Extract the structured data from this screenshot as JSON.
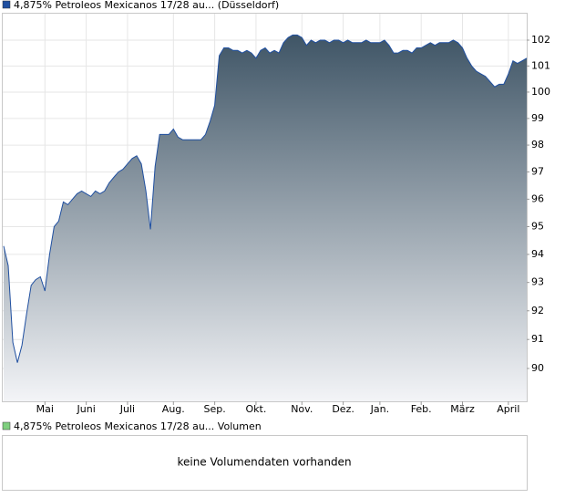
{
  "chart_data": {
    "type": "area_line",
    "legend_position": "top-left",
    "log_scale": true,
    "grid": true,
    "area_gradient": [
      "#3f5566",
      "#f3f4f7"
    ],
    "categories": [
      null,
      null,
      null,
      null,
      null,
      null,
      null,
      null,
      null,
      "Mai",
      null,
      null,
      null,
      null,
      null,
      null,
      null,
      null,
      "Juni",
      null,
      null,
      null,
      null,
      null,
      null,
      null,
      null,
      "Juli",
      null,
      null,
      null,
      null,
      null,
      null,
      null,
      null,
      null,
      "Aug.",
      null,
      null,
      null,
      null,
      null,
      null,
      null,
      null,
      "Sep.",
      null,
      null,
      null,
      null,
      null,
      null,
      null,
      null,
      "Okt.",
      null,
      null,
      null,
      null,
      null,
      null,
      null,
      null,
      null,
      "Nov.",
      null,
      null,
      null,
      null,
      null,
      null,
      null,
      null,
      "Dez.",
      null,
      null,
      null,
      null,
      null,
      null,
      null,
      "Jan.",
      null,
      null,
      null,
      null,
      null,
      null,
      null,
      null,
      "Feb.",
      null,
      null,
      null,
      null,
      null,
      null,
      null,
      null,
      "März",
      null,
      null,
      null,
      null,
      null,
      null,
      null,
      null,
      null,
      "April",
      null,
      null,
      null,
      null
    ],
    "series": [
      {
        "name": "4,875% Petroleos Mexicanos 17/28 au... (Düsseldorf)",
        "color": "#1f4fa0",
        "values": [
          94.3,
          93.6,
          90.9,
          90.2,
          90.8,
          91.9,
          92.9,
          93.1,
          93.2,
          92.7,
          94.0,
          95.0,
          95.2,
          95.9,
          95.8,
          96.0,
          96.2,
          96.3,
          96.2,
          96.1,
          96.3,
          96.2,
          96.3,
          96.6,
          96.8,
          97.0,
          97.1,
          97.3,
          97.5,
          97.6,
          97.3,
          96.3,
          94.9,
          97.2,
          98.4,
          98.4,
          98.4,
          98.6,
          98.3,
          98.2,
          98.2,
          98.2,
          98.2,
          98.2,
          98.4,
          98.9,
          99.5,
          101.4,
          101.7,
          101.7,
          101.6,
          101.6,
          101.5,
          101.6,
          101.5,
          101.3,
          101.6,
          101.7,
          101.5,
          101.6,
          101.5,
          101.9,
          102.1,
          102.2,
          102.2,
          102.1,
          101.8,
          102.0,
          101.9,
          102.0,
          102.0,
          101.9,
          102.0,
          102.0,
          101.9,
          102.0,
          101.9,
          101.9,
          101.9,
          102.0,
          101.9,
          101.9,
          101.9,
          102.0,
          101.8,
          101.5,
          101.5,
          101.6,
          101.6,
          101.5,
          101.7,
          101.7,
          101.8,
          101.9,
          101.8,
          101.9,
          101.9,
          101.9,
          102.0,
          101.9,
          101.7,
          101.3,
          101.0,
          100.8,
          100.7,
          100.6,
          100.4,
          100.2,
          100.3,
          100.3,
          100.7,
          101.2,
          101.1,
          101.2,
          101.3
        ]
      }
    ],
    "ylim": [
      88.88,
      103.07
    ],
    "yticks": [
      90,
      91,
      92,
      93,
      94,
      95,
      96,
      97,
      98,
      99,
      100,
      101,
      102
    ]
  },
  "volume_panel": {
    "legend": "4,875% Petroleos Mexicanos 17/28 au... Volumen",
    "legend_color": "#7fcf7f",
    "message": "keine Volumendaten vorhanden"
  }
}
